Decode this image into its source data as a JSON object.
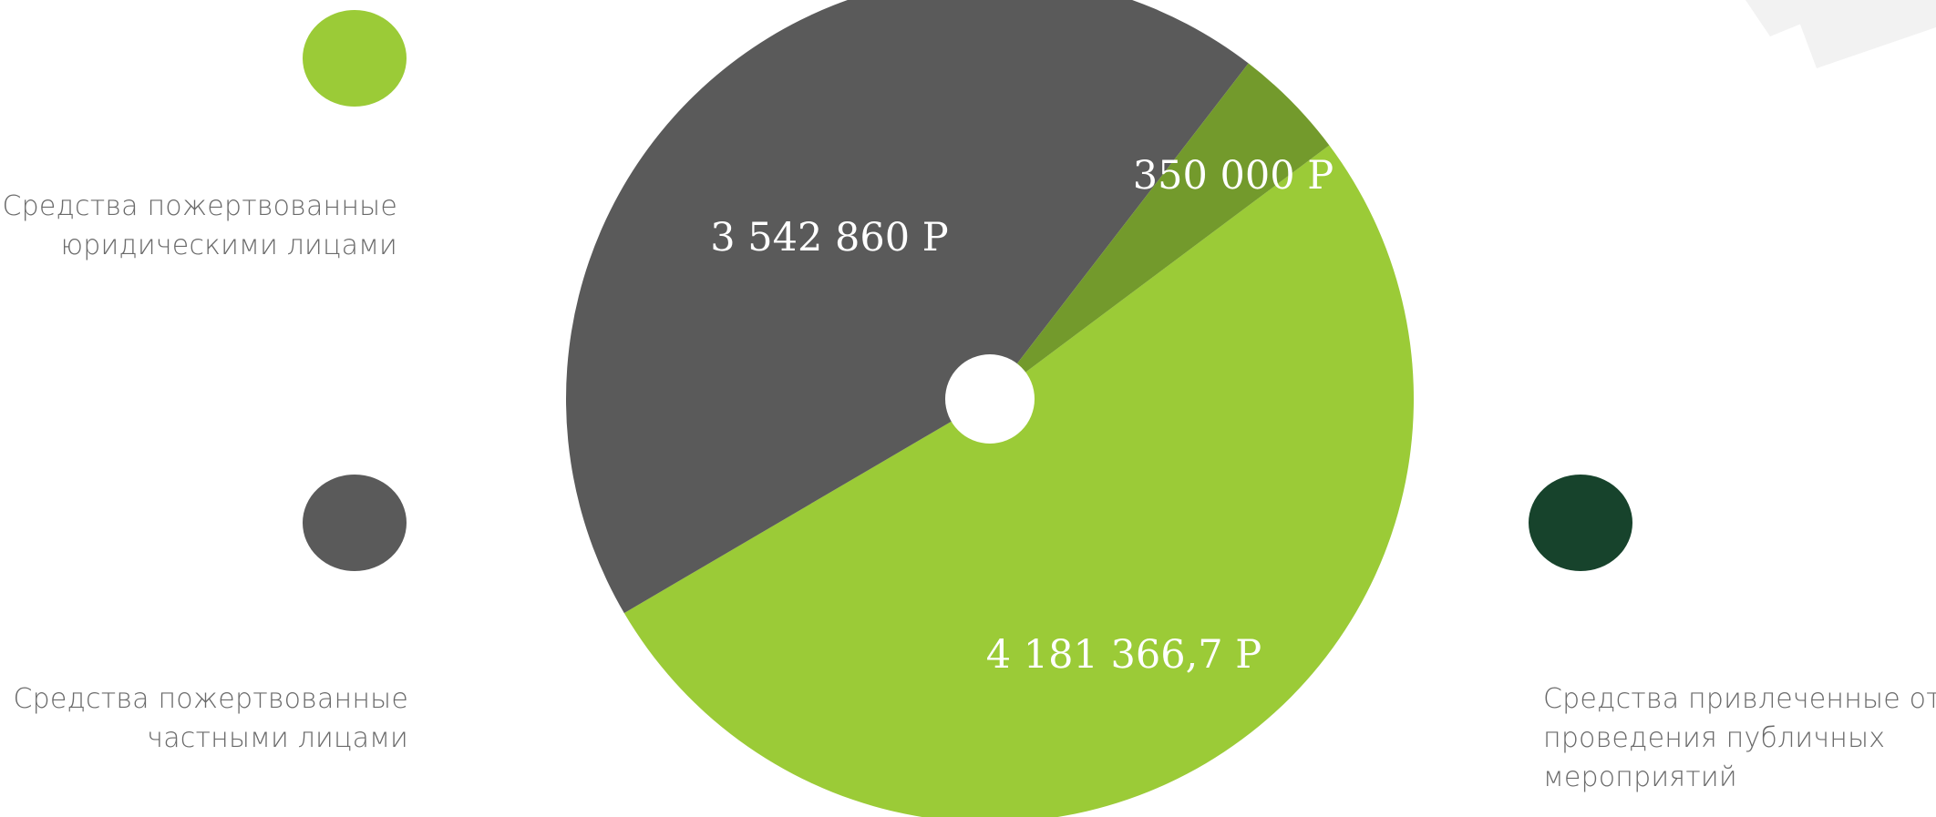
{
  "colors": {
    "legal_entities": "#9bcb37",
    "private_individuals": "#5a5a5a",
    "public_events": "#17432c",
    "events_slice": "#739a2c",
    "decor": "#f2f2f2"
  },
  "legend": [
    {
      "key": "legal_entities",
      "lines": [
        "Средства пожертвованные",
        "юридическими лицами"
      ]
    },
    {
      "key": "private_individuals",
      "lines": [
        "Средства пожертвованные",
        "частными лицами"
      ]
    },
    {
      "key": "public_events",
      "lines": [
        "Средства привлеченные от",
        "проведения публичных",
        "мероприятий"
      ]
    }
  ],
  "chart_data": {
    "type": "pie",
    "slices": [
      {
        "label": "4 181 366,7 Р",
        "value": 4181366.7,
        "color": "#9bcb37"
      },
      {
        "label": "3 542 860 Р",
        "value": 3542860,
        "color": "#5a5a5a"
      },
      {
        "label": "350 000 Р",
        "value": 350000,
        "color": "#739a2c"
      }
    ]
  }
}
